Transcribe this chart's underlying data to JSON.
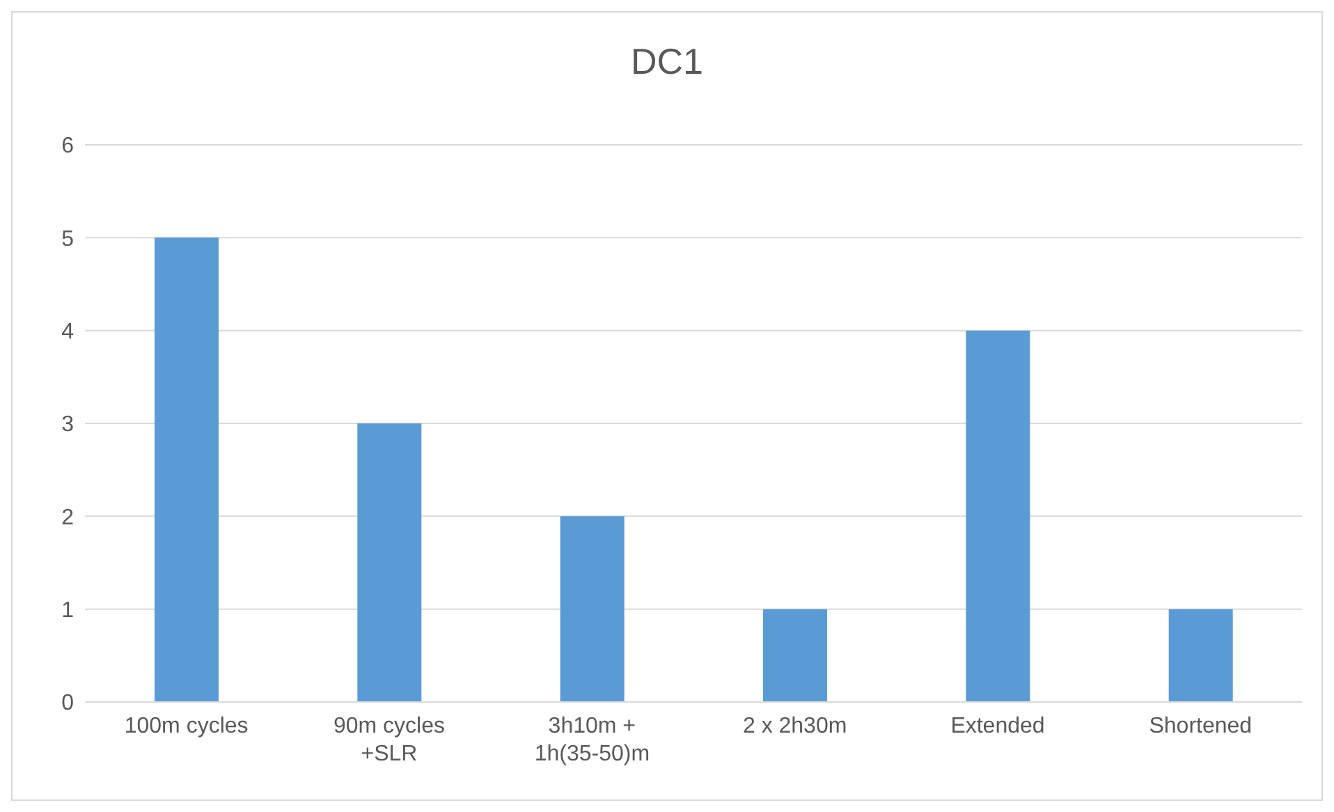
{
  "chart_data": {
    "type": "bar",
    "title": "DC1",
    "categories": [
      "100m cycles",
      "90m cycles +SLR",
      "3h10m + 1h(35-50)m",
      "2 x 2h30m",
      "Extended",
      "Shortened"
    ],
    "values": [
      5,
      3,
      2,
      1,
      4,
      1
    ],
    "color": "#5b9bd5",
    "ylim": [
      0,
      6
    ],
    "yticks": [
      0,
      1,
      2,
      3,
      4,
      5,
      6
    ],
    "grid": "y"
  }
}
